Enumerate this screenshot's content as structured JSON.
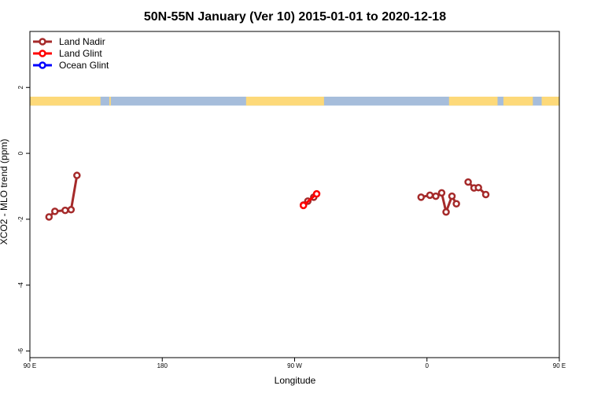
{
  "chart_data": {
    "type": "line",
    "title": "50N-55N January (Ver 10)   2015-01-01 to 2020-12-18",
    "xlabel": "Longitude",
    "ylabel": "XCO2 - MLO trend (ppm)",
    "xlim": [
      90,
      450
    ],
    "ylim": [
      -6.2,
      3.7
    ],
    "x_ticks": [
      {
        "value": 90,
        "label": "90 E"
      },
      {
        "value": 180,
        "label": "180"
      },
      {
        "value": 270,
        "label": "90 W"
      },
      {
        "value": 360,
        "label": "0"
      },
      {
        "value": 450,
        "label": "90 E"
      },
      {
        "value": 540,
        "label": "180"
      }
    ],
    "y_ticks": [
      {
        "value": 2,
        "label": "2"
      },
      {
        "value": 0,
        "label": "0"
      },
      {
        "value": -2,
        "label": "-2"
      },
      {
        "value": -4,
        "label": "-4"
      },
      {
        "value": -6,
        "label": "-6"
      }
    ],
    "legend": {
      "position": "top-left",
      "entries": [
        {
          "name": "Land Nadir",
          "color": "#A52A2A"
        },
        {
          "name": "Land Glint",
          "color": "#FF0000"
        },
        {
          "name": "Ocean Glint",
          "color": "#0000FF"
        }
      ]
    },
    "map_strip": {
      "y_range": [
        1.45,
        1.72
      ],
      "ocean_color": "#A6BDDB",
      "land_color": "#FDD979",
      "land_segments": [
        [
          90,
          138
        ],
        [
          144,
          145
        ],
        [
          237,
          290
        ],
        [
          375,
          408
        ],
        [
          412,
          432
        ],
        [
          438,
          450
        ]
      ]
    },
    "series": [
      {
        "name": "Land Nadir",
        "color": "#A52A2A",
        "segments": [
          {
            "x": [
              103,
              107,
              114,
              118,
              122
            ],
            "y": [
              -1.93,
              -1.76,
              -1.73,
              -1.71,
              -0.67
            ]
          },
          {
            "x": [
              276,
              279,
              283
            ],
            "y": [
              -1.57,
              -1.45,
              -1.33
            ]
          },
          {
            "x": [
              356,
              362,
              366,
              370,
              373,
              377,
              380
            ],
            "y": [
              -1.33,
              -1.27,
              -1.3,
              -1.2,
              -1.78,
              -1.3,
              -1.53
            ]
          },
          {
            "x": [
              388,
              392,
              395,
              400
            ],
            "y": [
              -0.87,
              -1.05,
              -1.04,
              -1.25
            ]
          },
          {
            "x": [
              474,
              478,
              484,
              488,
              492
            ],
            "y": [
              -1.93,
              -1.76,
              -1.73,
              -1.71,
              -0.67
            ]
          }
        ]
      },
      {
        "name": "Land Glint",
        "color": "#FF0000",
        "segments": [
          {
            "x": [
              276,
              285
            ],
            "y": [
              -1.58,
              -1.23
            ]
          }
        ]
      }
    ]
  }
}
